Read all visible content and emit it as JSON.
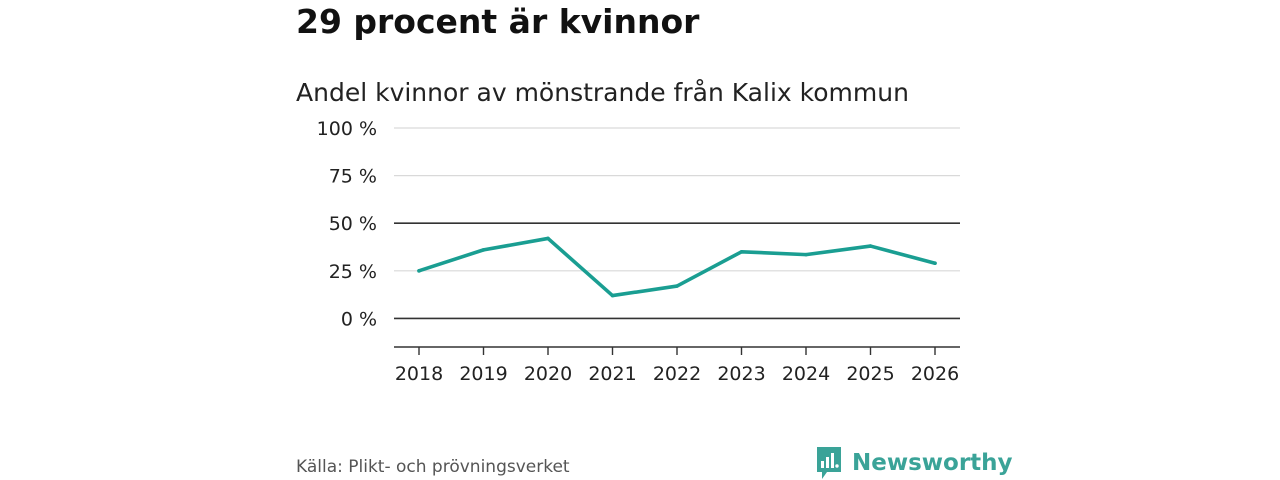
{
  "headline": "29 procent är kvinnor",
  "source": "Källa: Plikt- och prövningsverket",
  "brand": {
    "name": "Newsworthy",
    "color": "#3aa398"
  },
  "chart_data": {
    "type": "line",
    "title": "Andel kvinnor av mönstrande från Kalix kommun",
    "xlabel": "",
    "ylabel": "",
    "categories": [
      "2018",
      "2019",
      "2020",
      "2021",
      "2022",
      "2023",
      "2024",
      "2025",
      "2026"
    ],
    "series": [
      {
        "name": "Andel kvinnor",
        "values": [
          25,
          36,
          42,
          12,
          17,
          35,
          33.5,
          38,
          29
        ],
        "color": "#1a9e92"
      }
    ],
    "ylim": [
      -15,
      100
    ],
    "yticks": [
      100,
      75,
      50,
      25,
      0
    ],
    "ytick_labels": [
      "100 %",
      "75 %",
      "50 %",
      "25 %",
      "0 %"
    ],
    "grid": true
  }
}
